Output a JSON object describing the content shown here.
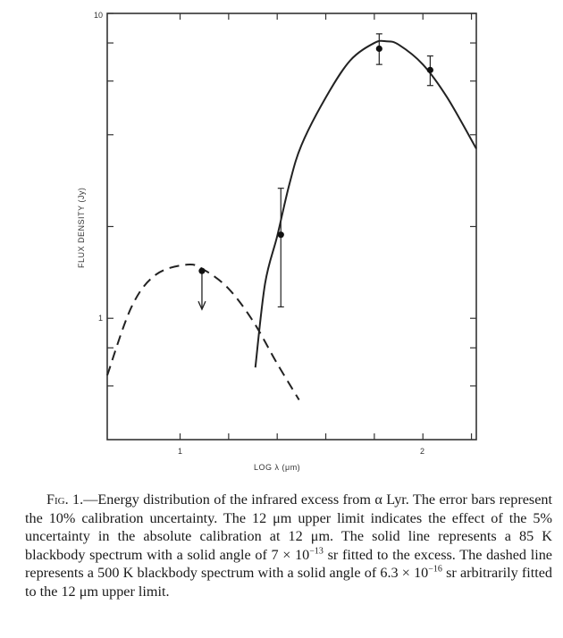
{
  "chart_data": {
    "type": "scatter",
    "title": "",
    "xlabel": "LOG λ (μm)",
    "ylabel": "FLUX DENSITY (Jy)",
    "xlim": [
      0.7,
      2.22
    ],
    "ylim": [
      0.4,
      10
    ],
    "yscale": "log",
    "x_tick_labels": [
      {
        "value": 1,
        "label": "1"
      },
      {
        "value": 2,
        "label": "2"
      }
    ],
    "y_tick_labels": [
      {
        "value": 10,
        "label": "10"
      },
      {
        "value": 1,
        "label": "1"
      }
    ],
    "x_minor_ticks": [
      1.0,
      1.2,
      1.4,
      1.6,
      1.8,
      2.0,
      2.2
    ],
    "y_minor_ticks": [
      10,
      8,
      6,
      4,
      2,
      1,
      0.8,
      0.6
    ],
    "grid": false,
    "points": [
      {
        "name": "12 μm upper limit",
        "x": 1.09,
        "y": 1.43,
        "upper_limit": true,
        "arrow_to": 1.07
      },
      {
        "name": "25 μm",
        "x": 1.415,
        "y": 1.88,
        "err_low": 1.09,
        "err_high": 2.67
      },
      {
        "name": "60 μm",
        "x": 1.82,
        "y": 7.66,
        "err_low": 6.8,
        "err_high": 8.57
      },
      {
        "name": "100 μm",
        "x": 2.03,
        "y": 6.52,
        "err_low": 5.8,
        "err_high": 7.25
      }
    ],
    "series": [
      {
        "name": "85 K blackbody",
        "style": "solid",
        "x": [
          1.31,
          1.35,
          1.4,
          1.45,
          1.5,
          1.6,
          1.7,
          1.8,
          1.85,
          1.9,
          2.0,
          2.1,
          2.22
        ],
        "y": [
          0.69,
          1.3,
          1.86,
          2.75,
          3.7,
          5.3,
          7.0,
          8.0,
          8.1,
          7.9,
          6.8,
          5.3,
          3.6
        ]
      },
      {
        "name": "500 K blackbody",
        "style": "dashed",
        "x": [
          0.7,
          0.8,
          0.9,
          1.03,
          1.1,
          1.2,
          1.3,
          1.4,
          1.49
        ],
        "y": [
          0.65,
          1.09,
          1.39,
          1.5,
          1.44,
          1.25,
          0.98,
          0.71,
          0.54
        ]
      }
    ]
  },
  "caption": {
    "fig_label": "Fig. 1.",
    "part1": "—Energy distribution of the infrared excess from α Lyr. The error bars represent the 10% calibration uncertainty. The 12 μm upper limit indicates the effect of the 5% uncertainty in the absolute calibration at 12 μm. The solid line represents a 85 K blackbody spectrum with a solid angle of 7 × 10",
    "sup1": "−13",
    "part2": " sr fitted to the excess. The dashed line represents a 500 K blackbody spectrum with a solid angle of 6.3 × 10",
    "sup2": "−16",
    "part3": " sr arbitrarily fitted to the 12 μm upper limit."
  }
}
